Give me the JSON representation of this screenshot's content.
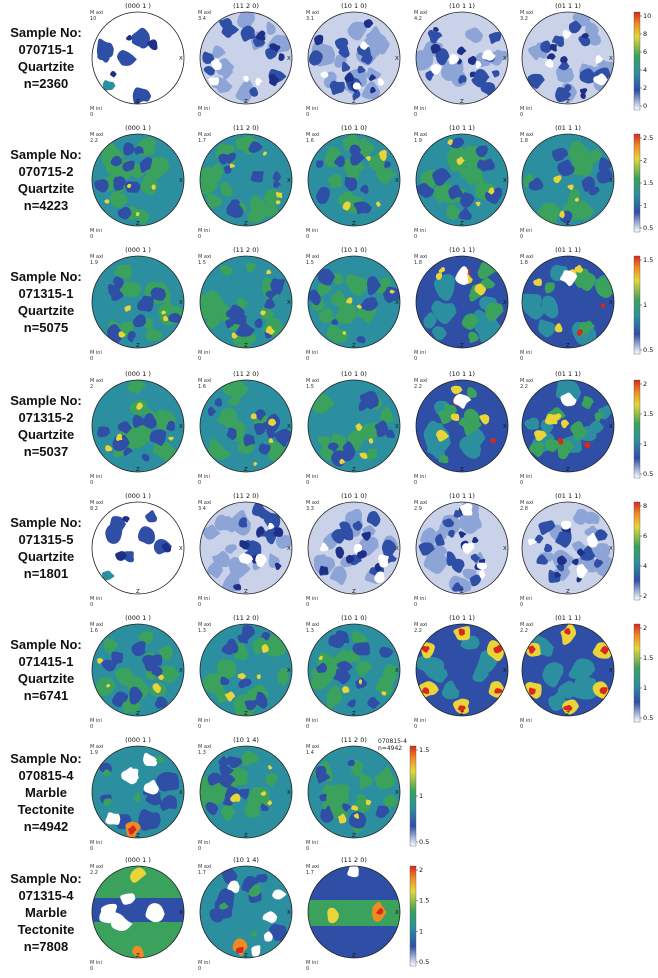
{
  "rows": [
    {
      "label": [
        "Sample No:",
        "070715-1",
        "Quartzite",
        "n=2360"
      ],
      "figures": [
        {
          "plane": "(000 1 )",
          "max_label": "M axi",
          "max": "10",
          "min_label": "M ini",
          "min": "0",
          "x_label": "X",
          "z_label": "Z",
          "scheme": "sparse"
        },
        {
          "plane": "(11 2 0)",
          "max_label": "M axi",
          "max": "3.4",
          "min_label": "M ini",
          "min": "0",
          "x_label": "X",
          "z_label": "Z",
          "scheme": "pale"
        },
        {
          "plane": "(10 1 0)",
          "max_label": "M axi",
          "max": "3.1",
          "min_label": "M ini",
          "min": "0",
          "x_label": "X",
          "z_label": "Z",
          "scheme": "pale"
        },
        {
          "plane": "(10 1 1)",
          "max_label": "M axi",
          "max": "4.2",
          "min_label": "M ini",
          "min": "0",
          "x_label": "X",
          "z_label": "Z",
          "scheme": "pale"
        },
        {
          "plane": "(01 1 1)",
          "max_label": "M axi",
          "max": "3.2",
          "min_label": "M ini",
          "min": "0",
          "x_label": "X",
          "z_label": "Z",
          "scheme": "pale"
        }
      ],
      "scale": {
        "ticks": [
          "10",
          "8",
          "6",
          "4",
          "2",
          "0"
        ]
      }
    },
    {
      "label": [
        "Sample No:",
        "070715-2",
        "Quartzite",
        "n=4223"
      ],
      "figures": [
        {
          "plane": "(000 1 )",
          "max_label": "M axi",
          "max": "2.2",
          "min_label": "M ini",
          "min": "0",
          "x_label": "X",
          "z_label": "Z",
          "scheme": "green"
        },
        {
          "plane": "(11 2 0)",
          "max_label": "M axi",
          "max": "1.7",
          "min_label": "M ini",
          "min": "0",
          "x_label": "X",
          "z_label": "Z",
          "scheme": "green"
        },
        {
          "plane": "(10 1 0)",
          "max_label": "M axi",
          "max": "1.6",
          "min_label": "M ini",
          "min": "0",
          "x_label": "X",
          "z_label": "Z",
          "scheme": "green"
        },
        {
          "plane": "(10 1 1)",
          "max_label": "M axi",
          "max": "1.9",
          "min_label": "M ini",
          "min": "0",
          "x_label": "X",
          "z_label": "Z",
          "scheme": "green"
        },
        {
          "plane": "(01 1 1)",
          "max_label": "M axi",
          "max": "1.8",
          "min_label": "M ini",
          "min": "0",
          "x_label": "X",
          "z_label": "Z",
          "scheme": "green"
        }
      ],
      "scale": {
        "ticks": [
          "2.5",
          "2",
          "1.5",
          "1",
          "0.5"
        ]
      }
    },
    {
      "label": [
        "Sample No:",
        "071315-1",
        "Quartzite",
        "n=5075"
      ],
      "figures": [
        {
          "plane": "(000 1 )",
          "max_label": "M axi",
          "max": "1.9",
          "min_label": "M ini",
          "min": "0",
          "x_label": "X",
          "z_label": "Z",
          "scheme": "green"
        },
        {
          "plane": "(11 2 0)",
          "max_label": "M axi",
          "max": "1.5",
          "min_label": "M ini",
          "min": "0",
          "x_label": "X",
          "z_label": "Z",
          "scheme": "green"
        },
        {
          "plane": "(10 1 0)",
          "max_label": "M axi",
          "max": "1.5",
          "min_label": "M ini",
          "min": "0",
          "x_label": "X",
          "z_label": "Z",
          "scheme": "green"
        },
        {
          "plane": "(10 1 1)",
          "max_label": "M axi",
          "max": "1.8",
          "min_label": "M ini",
          "min": "0",
          "x_label": "X",
          "z_label": "Z",
          "scheme": "strong"
        },
        {
          "plane": "(01 1 1)",
          "max_label": "M axi",
          "max": "1.8",
          "min_label": "M ini",
          "min": "0",
          "x_label": "X",
          "z_label": "Z",
          "scheme": "strong"
        }
      ],
      "scale": {
        "ticks": [
          "1.5",
          "1",
          "0.5"
        ]
      }
    },
    {
      "label": [
        "Sample No:",
        "071315-2",
        "Quartzite",
        "n=5037"
      ],
      "figures": [
        {
          "plane": "(000 1 )",
          "max_label": "M axi",
          "max": "2",
          "min_label": "M ini",
          "min": "0",
          "x_label": "X",
          "z_label": "Z",
          "scheme": "green"
        },
        {
          "plane": "(11 2 0)",
          "max_label": "M axi",
          "max": "1.6",
          "min_label": "M ini",
          "min": "0",
          "x_label": "X",
          "z_label": "Z",
          "scheme": "green"
        },
        {
          "plane": "(10 1 0)",
          "max_label": "M axi",
          "max": "1.5",
          "min_label": "M ini",
          "min": "0",
          "x_label": "X",
          "z_label": "Z",
          "scheme": "green"
        },
        {
          "plane": "(10 1 1)",
          "max_label": "M axi",
          "max": "2.2",
          "min_label": "M ini",
          "min": "0",
          "x_label": "X",
          "z_label": "Z",
          "scheme": "strong"
        },
        {
          "plane": "(01 1 1)",
          "max_label": "M axi",
          "max": "2.2",
          "min_label": "M ini",
          "min": "0",
          "x_label": "X",
          "z_label": "Z",
          "scheme": "strong"
        }
      ],
      "scale": {
        "ticks": [
          "2",
          "1.5",
          "1",
          "0.5"
        ]
      }
    },
    {
      "label": [
        "Sample No:",
        "071315-5",
        "Quartzite",
        "n=1801"
      ],
      "figures": [
        {
          "plane": "(000 1 )",
          "max_label": "M axi",
          "max": "8.2",
          "min_label": "M ini",
          "min": "0",
          "x_label": "X",
          "z_label": "Z",
          "scheme": "sparse"
        },
        {
          "plane": "(11 2 0)",
          "max_label": "M axi",
          "max": "3.4",
          "min_label": "M ini",
          "min": "0",
          "x_label": "X",
          "z_label": "Z",
          "scheme": "pale"
        },
        {
          "plane": "(10 1 0)",
          "max_label": "M axi",
          "max": "3.3",
          "min_label": "M ini",
          "min": "0",
          "x_label": "X",
          "z_label": "Z",
          "scheme": "pale"
        },
        {
          "plane": "(10 1 1)",
          "max_label": "M axi",
          "max": "2.9",
          "min_label": "M ini",
          "min": "0",
          "x_label": "X",
          "z_label": "Z",
          "scheme": "pale"
        },
        {
          "plane": "(01 1 1)",
          "max_label": "M axi",
          "max": "2.8",
          "min_label": "M ini",
          "min": "0",
          "x_label": "X",
          "z_label": "Z",
          "scheme": "pale"
        }
      ],
      "scale": {
        "ticks": [
          "8",
          "6",
          "4",
          "2"
        ]
      }
    },
    {
      "label": [
        "Sample No:",
        "071415-1",
        "Quartzite",
        "n=6741"
      ],
      "figures": [
        {
          "plane": "(000 1 )",
          "max_label": "M axi",
          "max": "1.6",
          "min_label": "M ini",
          "min": "0",
          "x_label": "X",
          "z_label": "Z",
          "scheme": "green"
        },
        {
          "plane": "(11 2 0)",
          "max_label": "M axi",
          "max": "1.3",
          "min_label": "M ini",
          "min": "0",
          "x_label": "X",
          "z_label": "Z",
          "scheme": "green"
        },
        {
          "plane": "(10 1 0)",
          "max_label": "M axi",
          "max": "1.3",
          "min_label": "M ini",
          "min": "0",
          "x_label": "X",
          "z_label": "Z",
          "scheme": "green"
        },
        {
          "plane": "(10 1 1)",
          "max_label": "M axi",
          "max": "2.2",
          "min_label": "M ini",
          "min": "0",
          "x_label": "X",
          "z_label": "Z",
          "scheme": "girdle"
        },
        {
          "plane": "(01 1 1)",
          "max_label": "M axi",
          "max": "2.2",
          "min_label": "M ini",
          "min": "0",
          "x_label": "X",
          "z_label": "Z",
          "scheme": "girdle"
        }
      ],
      "scale": {
        "ticks": [
          "2",
          "1.5",
          "1",
          "0.5"
        ]
      }
    },
    {
      "label": [
        "Sample No:",
        "070815-4",
        "Marble",
        "Tectonite",
        "n=4942"
      ],
      "figures": [
        {
          "plane": "(000 1 )",
          "max_label": "M axi",
          "max": "1.9",
          "min_label": "M ini",
          "min": "0",
          "x_label": "X",
          "z_label": "Z",
          "scheme": "marble"
        },
        {
          "plane": "(10 1 4)",
          "max_label": "M axi",
          "max": "1.3",
          "min_label": "M ini",
          "min": "0",
          "x_label": "X",
          "z_label": "Z",
          "scheme": "green"
        },
        {
          "plane": "(11 2 0)",
          "max_label": "M axi",
          "max": "1.4",
          "min_label": "M ini",
          "min": "0",
          "x_label": "X",
          "z_label": "Z",
          "scheme": "green"
        }
      ],
      "note": [
        "070815-4",
        "n=4942"
      ],
      "scale": {
        "ticks": [
          "1.5",
          "1",
          "0.5"
        ]
      }
    },
    {
      "label": [
        "Sample No:",
        "071315-4",
        "Marble",
        "Tectonite",
        "n=7808"
      ],
      "figures": [
        {
          "plane": "(000 1 )",
          "max_label": "M axi",
          "max": "2.2",
          "min_label": "M ini",
          "min": "0",
          "x_label": "X",
          "z_label": "Z",
          "scheme": "band"
        },
        {
          "plane": "(10 1 4)",
          "max_label": "M axi",
          "max": "1.7",
          "min_label": "M ini",
          "min": "0",
          "x_label": "X",
          "z_label": "Z",
          "scheme": "marble"
        },
        {
          "plane": "(11 2 0)",
          "max_label": "M axi",
          "max": "1.7",
          "min_label": "M ini",
          "min": "0",
          "x_label": "X",
          "z_label": "Z",
          "scheme": "band2"
        }
      ],
      "scale": {
        "ticks": [
          "2",
          "1.5",
          "1",
          "0.5"
        ]
      }
    }
  ],
  "colors": {
    "white": "#ffffff",
    "pale": "#c9d2e8",
    "light_blue": "#8da4d6",
    "blue": "#2f4ea6",
    "dark_blue": "#1d2f86",
    "teal": "#2c8f9f",
    "green": "#3aa25c",
    "yellow": "#e9d53a",
    "orange": "#ef8a24",
    "red": "#d8281e"
  }
}
